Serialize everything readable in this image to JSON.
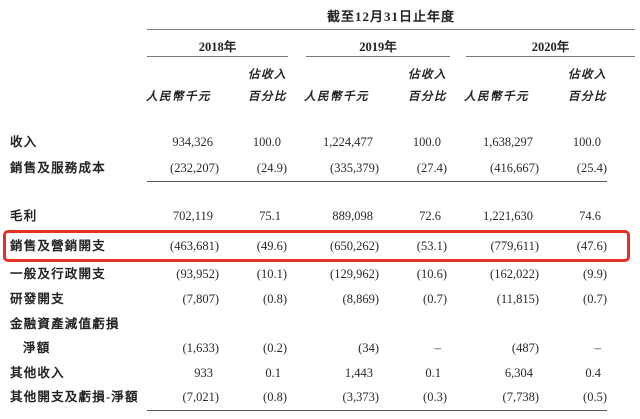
{
  "table": {
    "title": "截至12月31日止年度",
    "highlight_color": "#e53026",
    "year_groups": [
      {
        "year": "2018年",
        "amount_header": "人民幣千元",
        "pct_header_line1": "佔收入",
        "pct_header_line2": "百分比"
      },
      {
        "year": "2019年",
        "amount_header": "人民幣千元",
        "pct_header_line1": "佔收入",
        "pct_header_line2": "百分比"
      },
      {
        "year": "2020年",
        "amount_header": "人民幣千元",
        "pct_header_line1": "佔收入",
        "pct_header_line2": "百分比"
      }
    ],
    "rows": [
      {
        "label": "收入",
        "values": [
          "934,326",
          "100.0",
          "1,224,477",
          "100.0",
          "1,638,297",
          "100.0"
        ]
      },
      {
        "label": "銷售及服務成本",
        "underline": true,
        "values": [
          "(232,207)",
          "(24.9)",
          "(335,379)",
          "(27.4)",
          "(416,667)",
          "(25.4)"
        ]
      },
      {
        "label": "毛利",
        "values": [
          "702,119",
          "75.1",
          "889,098",
          "72.6",
          "1,221,630",
          "74.6"
        ]
      },
      {
        "label": "銷售及營銷開支",
        "highlighted": true,
        "values": [
          "(463,681)",
          "(49.6)",
          "(650,262)",
          "(53.1)",
          "(779,611)",
          "(47.6)"
        ]
      },
      {
        "label": "一般及行政開支",
        "values": [
          "(93,952)",
          "(10.1)",
          "(129,962)",
          "(10.6)",
          "(162,022)",
          "(9.9)"
        ]
      },
      {
        "label": "研發開支",
        "values": [
          "(7,807)",
          "(0.8)",
          "(8,869)",
          "(0.7)",
          "(11,815)",
          "(0.7)"
        ]
      },
      {
        "label": "金融資產減值虧損",
        "values": [
          "",
          "",
          "",
          "",
          "",
          ""
        ]
      },
      {
        "label": "淨額",
        "indent": true,
        "values": [
          "(1,633)",
          "(0.2)",
          "(34)",
          "–",
          "(487)",
          "–"
        ]
      },
      {
        "label": "其他收入",
        "values": [
          "933",
          "0.1",
          "1,443",
          "0.1",
          "6,304",
          "0.4"
        ]
      },
      {
        "label": "其他開支及虧損-淨額",
        "underline": true,
        "values": [
          "(7,021)",
          "(0.8)",
          "(3,373)",
          "(0.3)",
          "(7,738)",
          "(0.5)"
        ]
      }
    ]
  }
}
